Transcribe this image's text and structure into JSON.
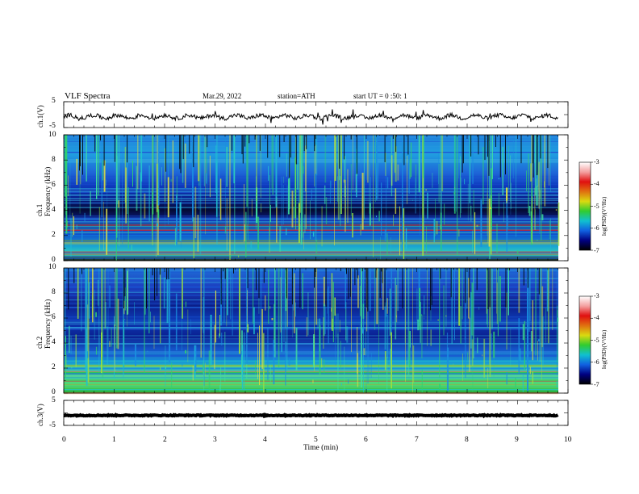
{
  "header": {
    "title": "VLF Spectra",
    "date": "Mar.29, 2022",
    "station": "station=ATH",
    "start": "start UT = 0 :50: 1"
  },
  "colorbars": [
    {
      "label": "log(PSD)(V²/Hz)",
      "ticks": [
        "-3",
        "-4",
        "-5",
        "-6",
        "-7"
      ]
    },
    {
      "label": "log(PSD)(V²/Hz)",
      "ticks": [
        "-3",
        "-4",
        "-5",
        "-6",
        "-7"
      ]
    }
  ],
  "chart_data": [
    {
      "type": "line",
      "ylabel": "ch.1(V)",
      "ylim": [
        -5,
        5
      ],
      "yticks": [
        "5",
        "-5"
      ],
      "xlim": [
        0,
        10
      ],
      "baseline_v": -0.8,
      "grid": false
    },
    {
      "type": "heatmap",
      "ylabel": "ch.1\nFrequency (kHz)",
      "ylim": [
        0,
        10
      ],
      "xlim": [
        0,
        10
      ],
      "yticks": [
        "10",
        "8",
        "6",
        "4",
        "2",
        "0"
      ],
      "colorscale": "log(PSD)(V²/Hz)",
      "crange": [
        -7,
        -3
      ]
    },
    {
      "type": "heatmap",
      "ylabel": "ch.2\nFrequency (kHz)",
      "ylim": [
        0,
        10
      ],
      "xlim": [
        0,
        10
      ],
      "yticks": [
        "10",
        "8",
        "6",
        "4",
        "2",
        "0"
      ],
      "colorscale": "log(PSD)(V²/Hz)",
      "crange": [
        -7,
        -3
      ]
    },
    {
      "type": "line",
      "ylabel": "ch.3(V)",
      "ylim": [
        -5,
        5
      ],
      "yticks": [
        "5",
        "-5"
      ],
      "xlim": [
        0,
        10
      ],
      "xlabel": "Time (min)",
      "xticks": [
        "0",
        "1",
        "2",
        "3",
        "4",
        "5",
        "6",
        "7",
        "8",
        "9",
        "10"
      ],
      "baseline_v": -1.0,
      "grid": false
    }
  ],
  "colors": {
    "ch1_rows": [
      {
        "f": 10,
        "c": "#1f7ddc"
      },
      {
        "f": 8.5,
        "c": "#1f9fe0"
      },
      {
        "f": 7,
        "c": "#1e66d8"
      },
      {
        "f": 6,
        "c": "#0f3cc0"
      },
      {
        "f": 5,
        "c": "#0a1e8e"
      },
      {
        "f": 4,
        "c": "#040a34"
      },
      {
        "f": 3.2,
        "c": "#0b1f8a"
      },
      {
        "f": 2.2,
        "c": "#0f48c8"
      },
      {
        "f": 1.2,
        "c": "#16a0d6"
      },
      {
        "f": 0.5,
        "c": "#38d4b0"
      },
      {
        "f": 0,
        "c": "#111111"
      }
    ],
    "ch2_rows": [
      {
        "f": 10,
        "c": "#1f6fd8"
      },
      {
        "f": 8.5,
        "c": "#1c3fbf"
      },
      {
        "f": 7,
        "c": "#0b1f8a"
      },
      {
        "f": 5.8,
        "c": "#0d3bb5"
      },
      {
        "f": 4.5,
        "c": "#0a1f90"
      },
      {
        "f": 3.2,
        "c": "#1665d0"
      },
      {
        "f": 2.3,
        "c": "#1aa3d3"
      },
      {
        "f": 1.5,
        "c": "#4ed0a0"
      },
      {
        "f": 0.6,
        "c": "#4ed86a"
      },
      {
        "f": 0,
        "c": "#22aa33"
      }
    ],
    "colorbar_stops": [
      "#ffffff",
      "#f4a0a0",
      "#e01010",
      "#e07010",
      "#dada10",
      "#30cc30",
      "#10c0d0",
      "#1060e0",
      "#000080",
      "#000000"
    ]
  }
}
